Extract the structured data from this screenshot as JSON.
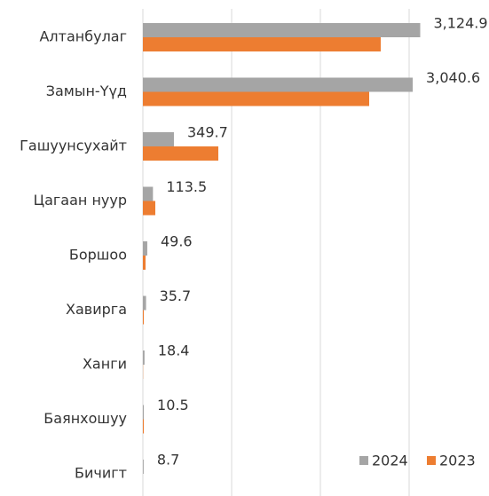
{
  "chart_data": {
    "type": "hbar",
    "categories": [
      "Алтанбулаг",
      "Замын-Үүд",
      "Гашуунсухайт",
      "Цагаан нуур",
      "Боршоо",
      "Хавирга",
      "Ханги",
      "Баянхошуу",
      "Бичигт"
    ],
    "series": [
      {
        "name": "2024",
        "color": "#a5a5a5",
        "values": [
          3124.9,
          3040.6,
          349.7,
          113.5,
          49.6,
          35.7,
          18.4,
          10.5,
          8.7
        ],
        "value_labels": [
          "3,124.9",
          "3,040.6",
          "349.7",
          "113.5",
          "49.6",
          "35.7",
          "18.4",
          "10.5",
          "8.7"
        ]
      },
      {
        "name": "2023",
        "color": "#ed7d31",
        "values": [
          2680,
          2550,
          850,
          140,
          30,
          10,
          2,
          10,
          0
        ]
      }
    ],
    "xlim": [
      0,
      3900
    ],
    "xticks": [
      0,
      1000,
      2000,
      3000
    ],
    "grid": true,
    "legend": "bottom-right"
  }
}
